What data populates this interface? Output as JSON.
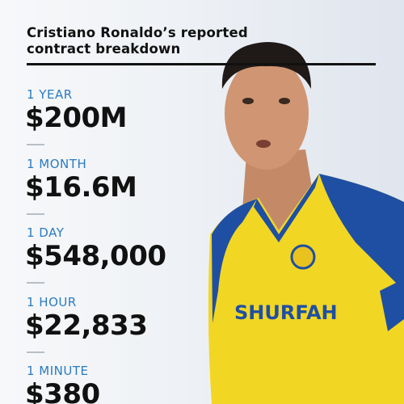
{
  "header": {
    "title_lines": [
      "Cristiano Ronaldo’s reported",
      "contract breakdown"
    ]
  },
  "items": [
    {
      "period": "1 YEAR",
      "amount": "$200M"
    },
    {
      "period": "1 MONTH",
      "amount": "$16.6M"
    },
    {
      "period": "1 DAY",
      "amount": "$548,000"
    },
    {
      "period": "1 HOUR",
      "amount": "$22,833"
    },
    {
      "period": "1 MINUTE",
      "amount": "$380"
    }
  ],
  "photo": {
    "jersey_text": "SHURFAH"
  }
}
